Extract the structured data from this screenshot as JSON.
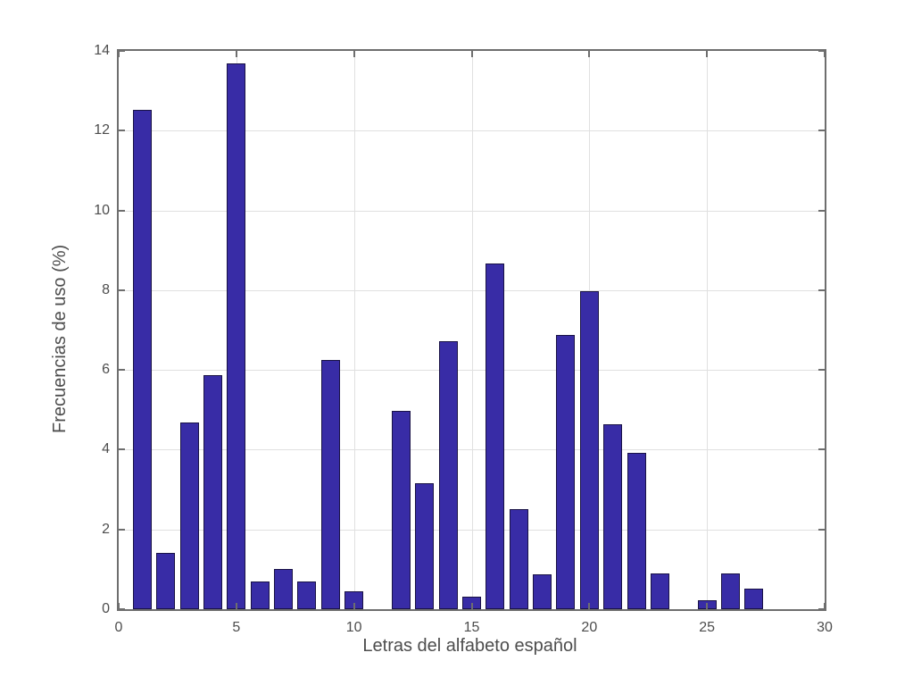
{
  "figure": {
    "background": "#ffffff"
  },
  "chart_data": {
    "type": "bar",
    "title": "",
    "xlabel": "Letras del alfabeto español",
    "ylabel": "Frecuencias de uso (%)",
    "x": [
      1,
      2,
      3,
      4,
      5,
      6,
      7,
      8,
      9,
      10,
      11,
      12,
      13,
      14,
      15,
      16,
      17,
      18,
      19,
      20,
      21,
      22,
      23,
      24,
      25,
      26,
      27
    ],
    "values": [
      12.53,
      1.42,
      4.68,
      5.86,
      13.68,
      0.69,
      1.01,
      0.7,
      6.25,
      0.44,
      0.02,
      4.97,
      3.15,
      6.71,
      0.31,
      8.68,
      2.51,
      0.88,
      6.87,
      7.98,
      4.63,
      3.93,
      0.9,
      0.01,
      0.22,
      0.9,
      0.52
    ],
    "xlim": [
      0,
      30
    ],
    "ylim": [
      0,
      14
    ],
    "xticks": [
      0,
      5,
      10,
      15,
      20,
      25,
      30
    ],
    "yticks": [
      0,
      2,
      4,
      6,
      8,
      10,
      12,
      14
    ],
    "bar_width_units": 0.8,
    "grid": true,
    "legend": null,
    "colors": {
      "bar_fill": "#382ca6",
      "bar_edge": "#191245",
      "grid_line": "#e0e0e0",
      "axis_line": "#6e6e6e",
      "tick_label": "#4d4d4d",
      "axis_label_text": "#4d4d4d",
      "background": "#ffffff"
    }
  }
}
